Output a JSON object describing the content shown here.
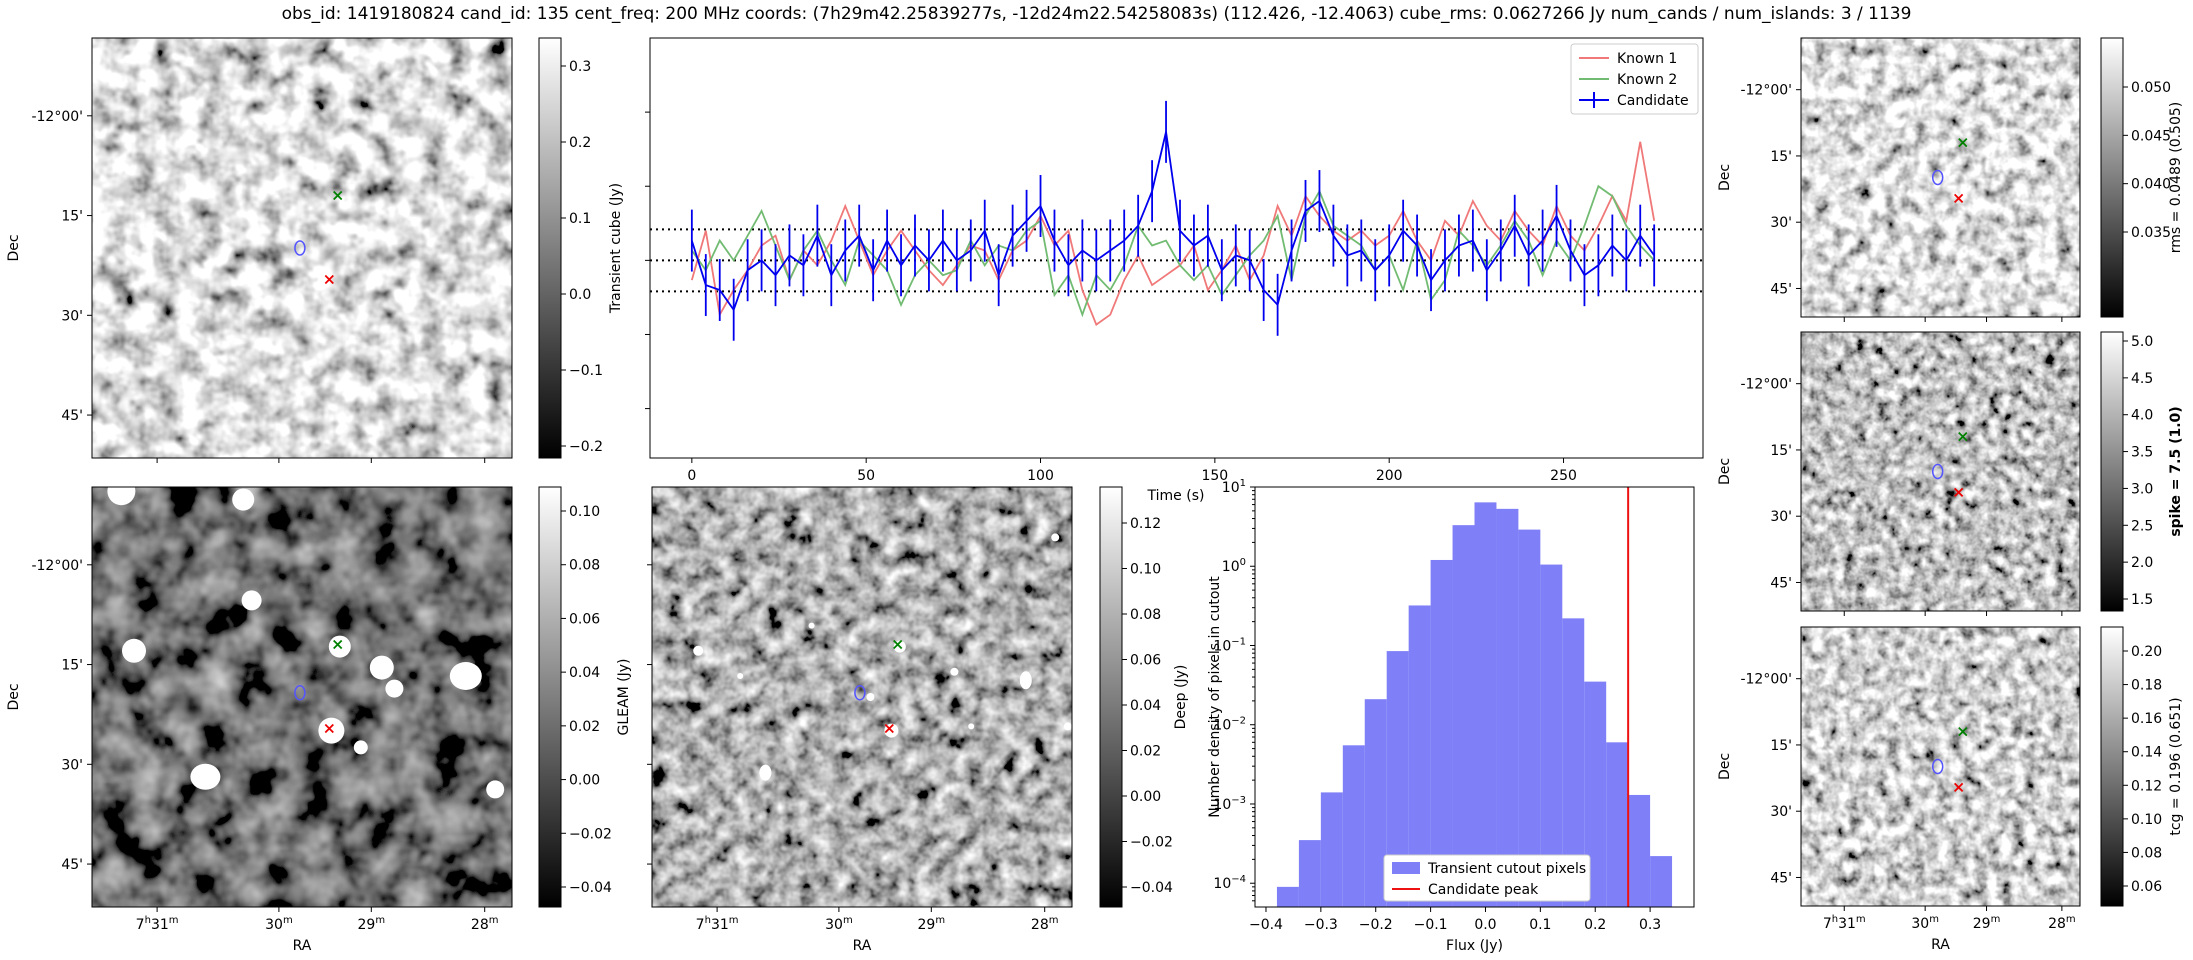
{
  "title": "obs_id: 1419180824 cand_id: 135 cent_freq: 200 MHz coords: (7h29m42.25839277s, -12d24m22.54258083s) (112.426, -12.4063) cube_rms: 0.0627266 Jy num_cands / num_islands: 3 / 1139",
  "colors": {
    "known1": "#f07878",
    "known2": "#72bb72",
    "candidate": "#0000ee",
    "hist": "#7f7ff7",
    "peak": "#ee1111"
  },
  "sky_axes": {
    "dec_label": "Dec",
    "ra_label": "RA",
    "dec_ticks": [
      "-12°00'",
      "15'",
      "30'",
      "45'"
    ],
    "ra_ticks": [
      "7h31m",
      "30m",
      "29m",
      "28m"
    ]
  },
  "panels": {
    "transient": {
      "colorbar_label": "Transient cube (Jy)",
      "colorbar_ticks": [
        "0.3",
        "0.2",
        "0.1",
        "0.0",
        "−0.1",
        "−0.2"
      ]
    },
    "gleam": {
      "colorbar_label": "GLEAM (Jy)",
      "colorbar_ticks": [
        "0.10",
        "0.08",
        "0.06",
        "0.04",
        "0.02",
        "0.00",
        "−0.02",
        "−0.04"
      ]
    },
    "deep": {
      "colorbar_label": "Deep (Jy)",
      "colorbar_ticks": [
        "0.12",
        "0.10",
        "0.08",
        "0.06",
        "0.04",
        "0.02",
        "0.00",
        "−0.02",
        "−0.04"
      ]
    },
    "rms": {
      "colorbar_label": "rms = 0.0489 (0.505)",
      "colorbar_ticks": [
        "0.050",
        "0.045",
        "0.040",
        "0.035"
      ]
    },
    "spike": {
      "colorbar_label": "spike = 7.5 (1.0)",
      "colorbar_ticks": [
        "5.0",
        "4.5",
        "4.0",
        "3.5",
        "3.0",
        "2.5",
        "2.0",
        "1.5"
      ]
    },
    "tcg": {
      "colorbar_label": "tcg = 0.196 (0.651)",
      "colorbar_ticks": [
        "0.20",
        "0.18",
        "0.16",
        "0.14",
        "0.12",
        "0.10",
        "0.08",
        "0.06"
      ]
    }
  },
  "chart_data": [
    {
      "type": "line",
      "title": "",
      "xlabel": "Time (s)",
      "ylabel": "",
      "xlim": [
        -12,
        290
      ],
      "ylim": [
        -0.4,
        0.45
      ],
      "xticks": [
        0,
        50,
        100,
        150,
        200,
        250
      ],
      "hlines": [
        0.0627,
        0.0,
        -0.0627
      ],
      "legend": [
        "Known 1",
        "Known 2",
        "Candidate"
      ],
      "legend_position": "top-right",
      "series": [
        {
          "name": "Known 1",
          "x": [
            0,
            4,
            8,
            12,
            16,
            20,
            24,
            28,
            32,
            36,
            40,
            44,
            48,
            52,
            56,
            60,
            64,
            68,
            72,
            76,
            80,
            84,
            88,
            92,
            96,
            100,
            104,
            108,
            112,
            116,
            120,
            124,
            128,
            132,
            136,
            140,
            144,
            148,
            152,
            156,
            160,
            164,
            168,
            172,
            176,
            180,
            184,
            188,
            192,
            196,
            200,
            204,
            208,
            212,
            216,
            220,
            224,
            228,
            232,
            236,
            240,
            244,
            248,
            252,
            256,
            260,
            264,
            268,
            272,
            276
          ],
          "y": [
            -0.04,
            0.06,
            -0.11,
            -0.06,
            -0.02,
            0.03,
            0.05,
            -0.04,
            0.02,
            -0.01,
            0.04,
            0.11,
            0.04,
            -0.03,
            0.02,
            0.06,
            0.02,
            -0.02,
            -0.05,
            -0.01,
            0.03,
            0.02,
            -0.04,
            0.02,
            0.04,
            0.09,
            0.03,
            0.06,
            -0.06,
            -0.13,
            -0.11,
            -0.04,
            0.01,
            -0.05,
            -0.03,
            -0.01,
            0.03,
            -0.06,
            -0.02,
            0.03,
            -0.04,
            0.01,
            0.11,
            0.05,
            0.13,
            0.09,
            0.06,
            0.04,
            0.06,
            0.03,
            0.05,
            0.1,
            0.04,
            0.0,
            0.08,
            0.05,
            0.12,
            0.07,
            0.04,
            0.1,
            0.06,
            0.03,
            0.11,
            0.05,
            0.02,
            0.07,
            0.13,
            0.08,
            0.24,
            0.08
          ]
        },
        {
          "name": "Known 2",
          "x": [
            0,
            4,
            8,
            12,
            16,
            20,
            24,
            28,
            32,
            36,
            40,
            44,
            48,
            52,
            56,
            60,
            64,
            68,
            72,
            76,
            80,
            84,
            88,
            92,
            96,
            100,
            104,
            108,
            112,
            116,
            120,
            124,
            128,
            132,
            136,
            140,
            144,
            148,
            152,
            156,
            160,
            164,
            168,
            172,
            176,
            180,
            184,
            188,
            192,
            196,
            200,
            204,
            208,
            212,
            216,
            220,
            224,
            228,
            232,
            236,
            240,
            244,
            248,
            252,
            256,
            260,
            264,
            268,
            272,
            276
          ],
          "y": [
            0.02,
            -0.02,
            0.04,
            0.0,
            0.05,
            0.1,
            0.03,
            -0.04,
            0.02,
            0.06,
            0.0,
            -0.05,
            0.04,
            0.01,
            -0.02,
            -0.09,
            -0.03,
            0.0,
            -0.03,
            -0.02,
            0.04,
            -0.01,
            0.03,
            0.02,
            0.06,
            0.08,
            -0.07,
            -0.03,
            -0.11,
            -0.03,
            -0.06,
            -0.01,
            0.07,
            0.03,
            0.04,
            -0.01,
            -0.04,
            -0.01,
            -0.07,
            -0.03,
            0.01,
            0.04,
            0.09,
            -0.04,
            0.09,
            0.14,
            0.07,
            0.05,
            0.03,
            -0.02,
            0.01,
            -0.06,
            0.04,
            -0.08,
            -0.04,
            0.06,
            0.03,
            -0.01,
            0.03,
            0.08,
            0.04,
            -0.03,
            0.04,
            0.0,
            0.07,
            0.15,
            0.13,
            0.07,
            0.03,
            0.0
          ]
        },
        {
          "name": "Candidate",
          "x": [
            0,
            4,
            8,
            12,
            16,
            20,
            24,
            28,
            32,
            36,
            40,
            44,
            48,
            52,
            56,
            60,
            64,
            68,
            72,
            76,
            80,
            84,
            88,
            92,
            96,
            100,
            104,
            108,
            112,
            116,
            120,
            124,
            128,
            132,
            136,
            140,
            144,
            148,
            152,
            156,
            160,
            164,
            168,
            172,
            176,
            180,
            184,
            188,
            192,
            196,
            200,
            204,
            208,
            212,
            216,
            220,
            224,
            228,
            232,
            236,
            240,
            244,
            248,
            252,
            256,
            260,
            264,
            268,
            272,
            276
          ],
          "y": [
            0.04,
            -0.05,
            -0.06,
            -0.1,
            -0.02,
            0.0,
            -0.03,
            0.01,
            -0.01,
            0.05,
            -0.03,
            0.02,
            0.05,
            -0.02,
            0.04,
            -0.01,
            0.03,
            0.0,
            0.04,
            0.0,
            0.02,
            0.06,
            -0.03,
            0.05,
            0.08,
            0.11,
            0.04,
            -0.01,
            0.02,
            0.0,
            0.02,
            0.04,
            0.07,
            0.14,
            0.26,
            0.06,
            0.03,
            0.05,
            -0.02,
            0.01,
            0.0,
            -0.06,
            -0.09,
            0.02,
            0.1,
            0.12,
            0.05,
            0.01,
            0.02,
            -0.02,
            0.01,
            0.06,
            0.03,
            -0.04,
            0.0,
            0.03,
            0.04,
            -0.02,
            0.02,
            0.07,
            0.01,
            0.04,
            0.09,
            0.02,
            -0.03,
            -0.01,
            0.03,
            0.0,
            0.05,
            0.01
          ],
          "yerr": 0.0627
        }
      ]
    },
    {
      "type": "bar",
      "title": "",
      "xlabel": "Flux (Jy)",
      "ylabel": "Number density of pixels in cutout",
      "yscale": "log",
      "xlim": [
        -0.42,
        0.38
      ],
      "ylim_exp": [
        -4.3,
        1.0
      ],
      "xticks": [
        "−0.4",
        "−0.3",
        "−0.2",
        "−0.1",
        "0.0",
        "0.1",
        "0.2",
        "0.3"
      ],
      "yticks": [
        "10^1",
        "10^0",
        "10^-1",
        "10^-2",
        "10^-3",
        "10^-4"
      ],
      "legend": [
        "Transient cutout pixels",
        "Candidate peak"
      ],
      "legend_position": "lower-center",
      "series": [
        {
          "name": "Transient cutout pixels",
          "bin_edges": [
            -0.38,
            -0.34,
            -0.3,
            -0.26,
            -0.22,
            -0.18,
            -0.14,
            -0.1,
            -0.06,
            -0.02,
            0.02,
            0.06,
            0.1,
            0.14,
            0.18,
            0.22,
            0.26,
            0.3,
            0.34
          ],
          "values": [
            9e-05,
            0.00035,
            0.0014,
            0.0055,
            0.021,
            0.085,
            0.32,
            1.2,
            3.3,
            6.4,
            5.3,
            2.9,
            1.05,
            0.22,
            0.035,
            0.006,
            0.0013,
            0.00022
          ]
        }
      ],
      "vline": {
        "name": "Candidate peak",
        "x": 0.26
      }
    }
  ]
}
